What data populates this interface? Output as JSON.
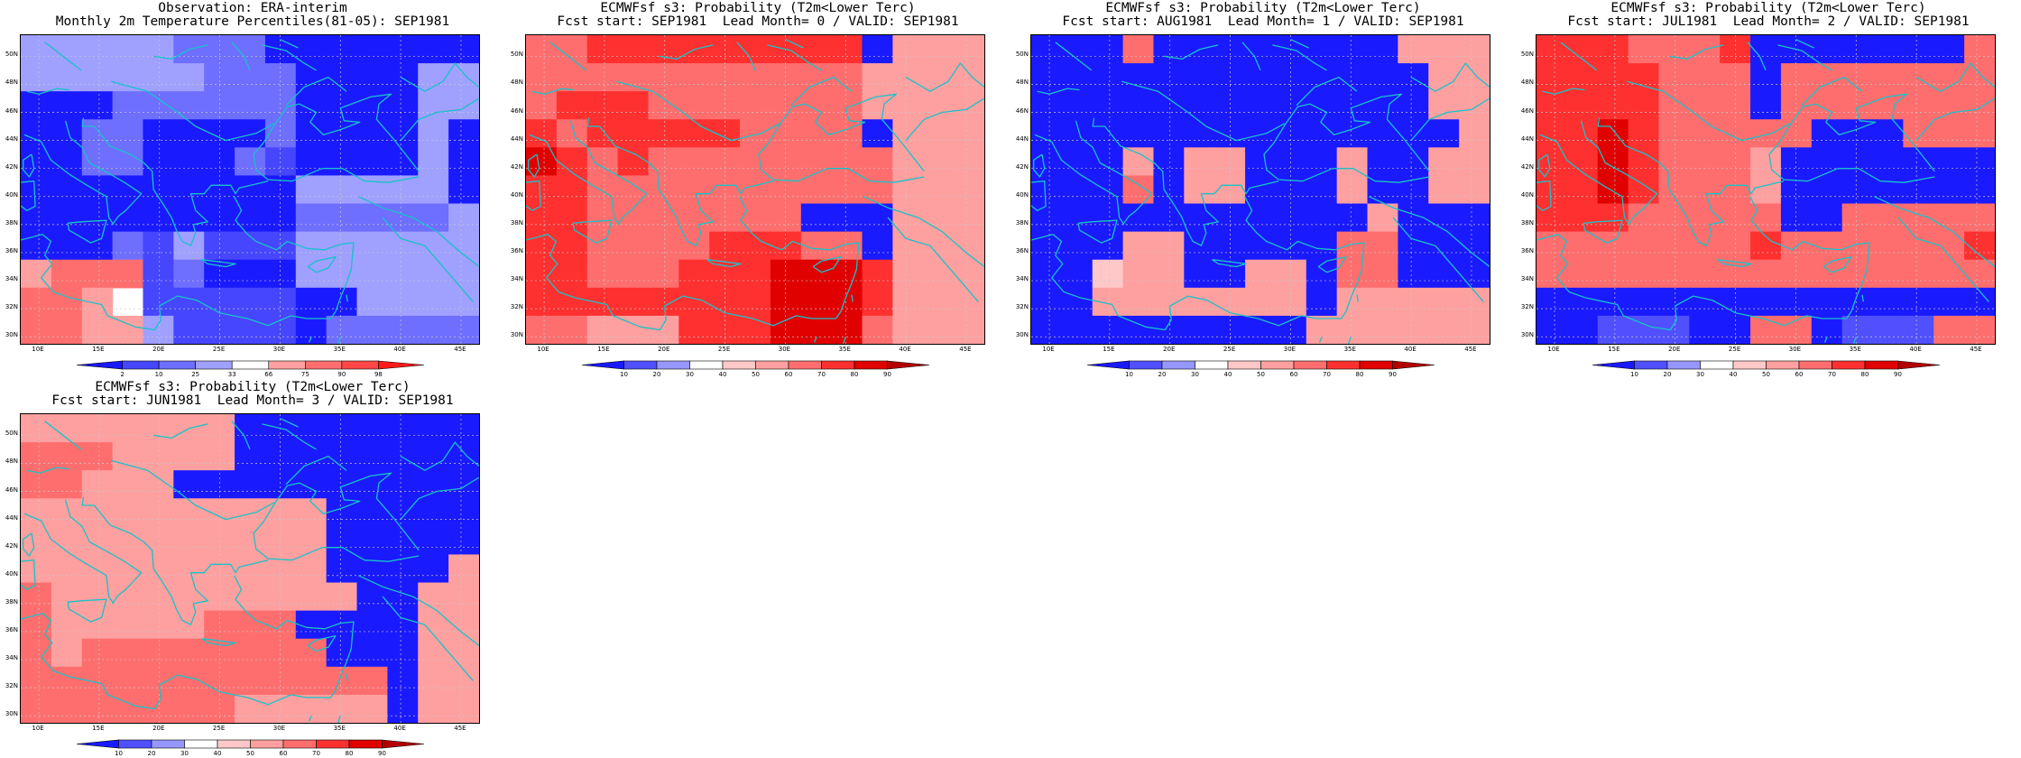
{
  "page": {
    "background": "#ffffff"
  },
  "colors": {
    "coast": "#18c2c8",
    "grid": "#c8c8c8",
    "frame": "#000000"
  },
  "panels": [
    {
      "id": "obs",
      "title1": "Observation: ERA-interim",
      "title2": "Monthly 2m Temperature Percentiles(81-05): SEP1981",
      "colorbar": {
        "labels": [
          "2",
          "10",
          "25",
          "33",
          "66",
          "75",
          "90",
          "98"
        ],
        "colors": [
          "#1a1aff",
          "#4646ff",
          "#6e6eff",
          "#a0a0ff",
          "#ffffff",
          "#ffa0a0",
          "#ff6e6e",
          "#ff4646",
          "#ff1a1a"
        ]
      },
      "grid": [
        "333332220000000",
        "333333222000033",
        "000222222000033",
        "002200002000030",
        "002200021000030",
        "000000000333330",
        "000000000222223",
        "000213111333333",
        "566612000333333",
        "665411111003333",
        "665531111022222"
      ]
    },
    {
      "id": "lead0",
      "title1": "ECMWFsf s3: Probability (T2m<Lower Terc)",
      "title2": "Fcst start: SEP1981  Lead Month= 0 / VALID: SEP1981",
      "colorbar": {
        "labels": [
          "10",
          "20",
          "30",
          "40",
          "50",
          "60",
          "70",
          "80",
          "90"
        ],
        "colors": [
          "#1a1aff",
          "#5050ff",
          "#9696ff",
          "#ffffff",
          "#ffc8c8",
          "#ffa0a0",
          "#ff6e6e",
          "#ff3030",
          "#e00000",
          "#b40000"
        ]
      },
      "grid": [
        "667777777770555",
        "666666666665555",
        "677766666665555",
        "767777766660555",
        "876766666666555",
        "776666666666555",
        "776666666000555",
        "776666777660555",
        "776667778887555",
        "777777778887555",
        "665557778886555"
      ]
    },
    {
      "id": "lead1",
      "title1": "ECMWFsf s3: Probability (T2m<Lower Terc)",
      "title2": "Fcst start: AUG1981  Lead Month= 1 / VALID: SEP1981",
      "colorbar": {
        "labels": [
          "10",
          "20",
          "30",
          "40",
          "50",
          "60",
          "70",
          "80",
          "90"
        ],
        "colors": [
          "#1a1aff",
          "#5050ff",
          "#9696ff",
          "#ffffff",
          "#ffc8c8",
          "#ffa0a0",
          "#ff6e6e",
          "#ff3030",
          "#e00000",
          "#b40000"
        ]
      },
      "grid": [
        "000600000000555",
        "000000000000055",
        "000000000000055",
        "000000000000005",
        "000505500050055",
        "000605500050055",
        "000000000005000",
        "000550000066000",
        "004550055066000",
        "005555555055555",
        "000000000555555"
      ]
    },
    {
      "id": "lead2",
      "title1": "ECMWFsf s3: Probability (T2m<Lower Terc)",
      "title2": "Fcst start: JUL1981  Lead Month= 2 / VALID: SEP1981",
      "colorbar": {
        "labels": [
          "10",
          "20",
          "30",
          "40",
          "50",
          "60",
          "70",
          "80",
          "90"
        ],
        "colors": [
          "#1a1aff",
          "#5050ff",
          "#9696ff",
          "#ffffff",
          "#ffc8c8",
          "#ffa0a0",
          "#ff6e6e",
          "#ff3030",
          "#e00000",
          "#b40000"
        ]
      },
      "grid": [
        "777666700000006",
        "777766606666666",
        "777766606666666",
        "778766666000666",
        "778766650000000",
        "778766650000000",
        "777666660066666",
        "666666676666667",
        "666666666666666",
        "000000000000000",
        "001110066011166"
      ]
    },
    {
      "id": "lead3",
      "title1": "ECMWFsf s3: Probability (T2m<Lower Terc)",
      "title2": "Fcst start: JUN1981  Lead Month= 3 / VALID: SEP1981",
      "colorbar": {
        "labels": [
          "10",
          "20",
          "30",
          "40",
          "50",
          "60",
          "70",
          "80",
          "90"
        ],
        "colors": [
          "#1a1aff",
          "#5050ff",
          "#9696ff",
          "#ffffff",
          "#ffc8c8",
          "#ffa0a0",
          "#ff6e6e",
          "#ff3030",
          "#e00000",
          "#b40000"
        ]
      },
      "grid": [
        "555555500000000",
        "666555500000000",
        "665550000000000",
        "555555555500000",
        "555555555500000",
        "555555555500005",
        "655555555550055",
        "655555666000055",
        "656666666600055",
        "666666666666055",
        "666666655555055"
      ]
    }
  ],
  "axes": {
    "lat_labels": [
      "50N",
      "48N",
      "46N",
      "44N",
      "42N",
      "40N",
      "38N",
      "36N",
      "34N",
      "32N",
      "30N"
    ],
    "lon_labels": [
      "10E",
      "15E",
      "20E",
      "25E",
      "30E",
      "35E",
      "40E",
      "45E"
    ]
  }
}
